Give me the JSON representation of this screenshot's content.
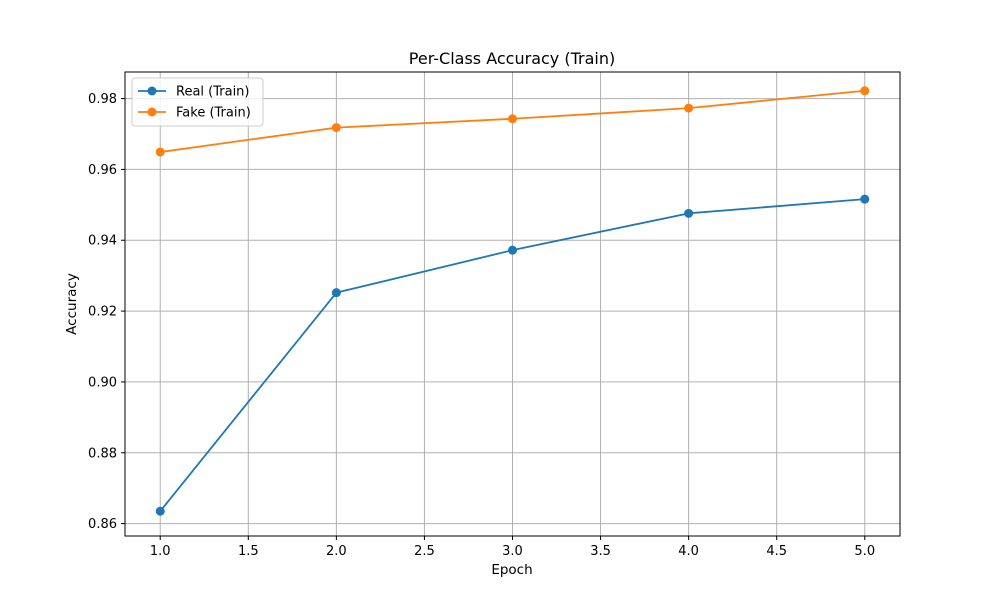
{
  "chart_data": {
    "type": "line",
    "title": "Per-Class Accuracy (Train)",
    "xlabel": "Epoch",
    "ylabel": "Accuracy",
    "x": [
      1,
      2,
      3,
      4,
      5
    ],
    "xlim": [
      0.8,
      5.2
    ],
    "ylim": [
      0.8565,
      0.9875
    ],
    "xticks": [
      1.0,
      1.5,
      2.0,
      2.5,
      3.0,
      3.5,
      4.0,
      4.5,
      5.0
    ],
    "xtick_labels": [
      "1.0",
      "1.5",
      "2.0",
      "2.5",
      "3.0",
      "3.5",
      "4.0",
      "4.5",
      "5.0"
    ],
    "yticks": [
      0.86,
      0.88,
      0.9,
      0.92,
      0.94,
      0.96,
      0.98
    ],
    "ytick_labels": [
      "0.86",
      "0.88",
      "0.90",
      "0.92",
      "0.94",
      "0.96",
      "0.98"
    ],
    "grid": true,
    "legend_position": "top-left",
    "series": [
      {
        "name": "Real (Train)",
        "color": "#1f77b4",
        "marker": "circle",
        "values": [
          0.8635,
          0.9252,
          0.9372,
          0.9476,
          0.9516
        ]
      },
      {
        "name": "Fake (Train)",
        "color": "#ff7f0e",
        "marker": "circle",
        "values": [
          0.9649,
          0.9718,
          0.9743,
          0.9773,
          0.9822
        ]
      }
    ]
  }
}
